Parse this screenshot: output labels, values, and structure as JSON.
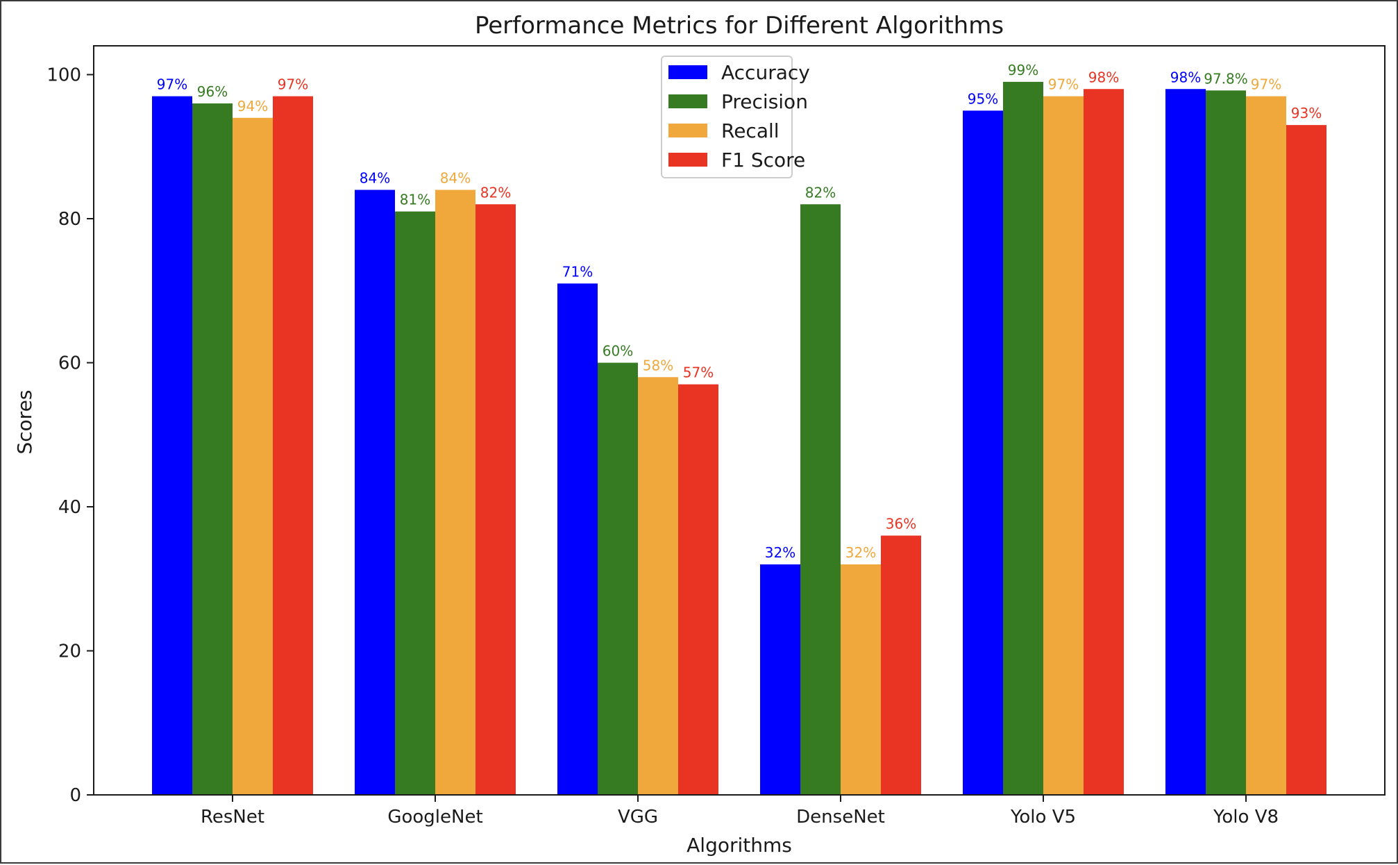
{
  "chart_data": {
    "type": "bar",
    "title": "Performance Metrics for Different Algorithms",
    "xlabel": "Algorithms",
    "ylabel": "Scores",
    "ylim": [
      0,
      104
    ],
    "yticks": [
      0,
      20,
      40,
      60,
      80,
      100
    ],
    "grid": false,
    "legend_position": "top-center",
    "categories": [
      "ResNet",
      "GoogleNet",
      "VGG",
      "DenseNet",
      "Yolo V5",
      "Yolo V8"
    ],
    "series": [
      {
        "name": "Accuracy",
        "color": "#0000ff",
        "values": [
          97,
          84,
          71,
          32,
          95,
          98
        ],
        "labels": [
          "97%",
          "84%",
          "71%",
          "32%",
          "95%",
          "98%"
        ]
      },
      {
        "name": "Precision",
        "color": "#367b22",
        "values": [
          96,
          81,
          60,
          82,
          99,
          97.8
        ],
        "labels": [
          "96%",
          "81%",
          "60%",
          "82%",
          "99%",
          "97.8%"
        ]
      },
      {
        "name": "Recall",
        "color": "#f0a83c",
        "values": [
          94,
          84,
          58,
          32,
          97,
          97
        ],
        "labels": [
          "94%",
          "84%",
          "58%",
          "32%",
          "97%",
          "97%"
        ]
      },
      {
        "name": "F1 Score",
        "color": "#e93323",
        "values": [
          97,
          82,
          57,
          36,
          98,
          93
        ],
        "labels": [
          "97%",
          "82%",
          "57%",
          "36%",
          "98%",
          "93%"
        ]
      }
    ]
  }
}
